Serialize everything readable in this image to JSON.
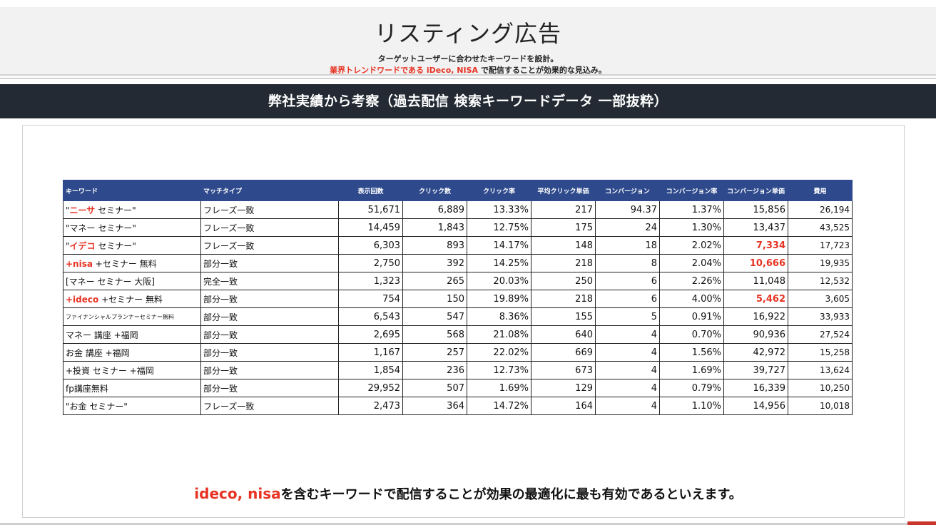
{
  "header": {
    "title": "リスティング広告",
    "line1": "ターゲットユーザーに合わせたキーワードを設計。",
    "line2_red": "業界トレンドワードである iDeco, NISA",
    "line2_rest": " で配信することが効果的な見込み。"
  },
  "section_title": "弊社実績から考察（過去配信 検索キーワードデータ 一部抜粋）",
  "table": {
    "headers": [
      "キーワード",
      "マッチタイプ",
      "表示回数",
      "クリック数",
      "クリック率",
      "平均クリック単価",
      "コンバージョン",
      "コンバージョン率",
      "コンバージョン単価",
      "費用"
    ],
    "rows": [
      {
        "kw_pre": "\"",
        "kw_hl": "ニーサ",
        "kw_post": " セミナー\"",
        "match": "フレーズ一致",
        "imp": "51,671",
        "clicks": "6,889",
        "ctr": "13.33%",
        "cpc": "217",
        "conv": "94.37",
        "cvr": "1.37%",
        "cpa": "15,856",
        "cpa_hl": false,
        "cost": "26,194"
      },
      {
        "kw_pre": "\"マネー セミナー\"",
        "kw_hl": "",
        "kw_post": "",
        "match": "フレーズ一致",
        "imp": "14,459",
        "clicks": "1,843",
        "ctr": "12.75%",
        "cpc": "175",
        "conv": "24",
        "cvr": "1.30%",
        "cpa": "13,437",
        "cpa_hl": false,
        "cost": "43,525"
      },
      {
        "kw_pre": "\"",
        "kw_hl": "イデコ",
        "kw_post": " セミナー\"",
        "match": "フレーズ一致",
        "imp": "6,303",
        "clicks": "893",
        "ctr": "14.17%",
        "cpc": "148",
        "conv": "18",
        "cvr": "2.02%",
        "cpa": "7,334",
        "cpa_hl": true,
        "cost": "17,723"
      },
      {
        "kw_pre": " ",
        "kw_hl": "+nisa",
        "kw_post": " +セミナー 無料",
        "match": "部分一致",
        "imp": "2,750",
        "clicks": "392",
        "ctr": "14.25%",
        "cpc": "218",
        "conv": "8",
        "cvr": "2.04%",
        "cpa": "10,666",
        "cpa_hl": true,
        "cost": "19,935"
      },
      {
        "kw_pre": "[マネー セミナー 大阪]",
        "kw_hl": "",
        "kw_post": "",
        "match": "完全一致",
        "imp": "1,323",
        "clicks": "265",
        "ctr": "20.03%",
        "cpc": "250",
        "conv": "6",
        "cvr": "2.26%",
        "cpa": "11,048",
        "cpa_hl": false,
        "cost": "12,532"
      },
      {
        "kw_pre": " ",
        "kw_hl": "+ideco",
        "kw_post": " +セミナー 無料",
        "match": "部分一致",
        "imp": "754",
        "clicks": "150",
        "ctr": "19.89%",
        "cpc": "218",
        "conv": "6",
        "cvr": "4.00%",
        "cpa": "5,462",
        "cpa_hl": true,
        "cost": "3,605"
      },
      {
        "kw_pre": "ファイナンシャルプランナーセミナー無料",
        "kw_hl": "",
        "kw_post": "",
        "tiny": true,
        "match": "部分一致",
        "imp": "6,543",
        "clicks": "547",
        "ctr": "8.36%",
        "cpc": "155",
        "conv": "5",
        "cvr": "0.91%",
        "cpa": "16,922",
        "cpa_hl": false,
        "cost": "33,933"
      },
      {
        "kw_pre": "マネー 講座 +福岡",
        "kw_hl": "",
        "kw_post": "",
        "match": "部分一致",
        "imp": "2,695",
        "clicks": "568",
        "ctr": "21.08%",
        "cpc": "640",
        "conv": "4",
        "cvr": "0.70%",
        "cpa": "90,936",
        "cpa_hl": false,
        "cost": "27,524"
      },
      {
        "kw_pre": "お金 講座 +福岡",
        "kw_hl": "",
        "kw_post": "",
        "match": "部分一致",
        "imp": "1,167",
        "clicks": "257",
        "ctr": "22.02%",
        "cpc": "669",
        "conv": "4",
        "cvr": "1.56%",
        "cpa": "42,972",
        "cpa_hl": false,
        "cost": "15,258"
      },
      {
        "kw_pre": " +投資 セミナー +福岡",
        "kw_hl": "",
        "kw_post": "",
        "match": "部分一致",
        "imp": "1,854",
        "clicks": "236",
        "ctr": "12.73%",
        "cpc": "673",
        "conv": "4",
        "cvr": "1.69%",
        "cpa": "39,727",
        "cpa_hl": false,
        "cost": "13,624"
      },
      {
        "kw_pre": "fp講座無料",
        "kw_hl": "",
        "kw_post": "",
        "match": "部分一致",
        "imp": "29,952",
        "clicks": "507",
        "ctr": "1.69%",
        "cpc": "129",
        "conv": "4",
        "cvr": "0.79%",
        "cpa": "16,339",
        "cpa_hl": false,
        "cost": "10,250"
      },
      {
        "kw_pre": "\"お金 セミナー\"",
        "kw_hl": "",
        "kw_post": "",
        "match": "フレーズ一致",
        "imp": "2,473",
        "clicks": "364",
        "ctr": "14.72%",
        "cpc": "164",
        "conv": "4",
        "cvr": "1.10%",
        "cpa": "14,956",
        "cpa_hl": false,
        "cost": "10,018"
      }
    ]
  },
  "footer": {
    "red": "ideco, nisa",
    "rest": "を含むキーワードで配信することが効果の最適化に最も有効であるといえます。"
  },
  "colors": {
    "accent_red": "#e63323",
    "header_bar": "#232a33",
    "table_header": "#2e4a8c"
  }
}
